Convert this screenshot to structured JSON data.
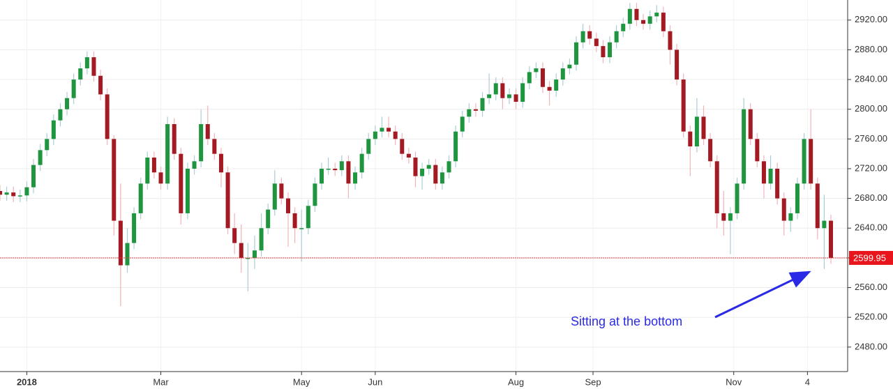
{
  "chart_data": {
    "type": "candlestick",
    "x": [
      0,
      2,
      4,
      6,
      8,
      10,
      12,
      14,
      16,
      18,
      20,
      22,
      24,
      26,
      28,
      30,
      32,
      34,
      36,
      38,
      40,
      42,
      44,
      46,
      48,
      50,
      52,
      54,
      56,
      58,
      60,
      62,
      64,
      66,
      68,
      70,
      72,
      74,
      76,
      78,
      80,
      82,
      84,
      86,
      88,
      90,
      92,
      94,
      96,
      98,
      100,
      102,
      104,
      106,
      108,
      110,
      112,
      114,
      116,
      118,
      120,
      122,
      124,
      126,
      128,
      130,
      132,
      134,
      136,
      138,
      140,
      142,
      144,
      146,
      148,
      150,
      152,
      154,
      156,
      158,
      160,
      162,
      164,
      166,
      168,
      170,
      172,
      174,
      176,
      178,
      180,
      182,
      184,
      186,
      188,
      190,
      192,
      194,
      196,
      198,
      200,
      202,
      204,
      206,
      208,
      210,
      212,
      214,
      216,
      218,
      220,
      222,
      224,
      226,
      228,
      230,
      232,
      234,
      236,
      238,
      240,
      242,
      244,
      246,
      248
    ],
    "open": [
      2690,
      2685,
      2688,
      2683,
      2684,
      2695,
      2725,
      2745,
      2760,
      2785,
      2800,
      2815,
      2840,
      2855,
      2870,
      2845,
      2820,
      2760,
      2650,
      2590,
      2620,
      2660,
      2700,
      2735,
      2715,
      2700,
      2780,
      2740,
      2660,
      2720,
      2730,
      2780,
      2760,
      2740,
      2715,
      2640,
      2620,
      2600,
      2600,
      2610,
      2640,
      2665,
      2700,
      2680,
      2660,
      2640,
      2640,
      2670,
      2700,
      2720,
      2720,
      2718,
      2730,
      2700,
      2715,
      2740,
      2760,
      2770,
      2775,
      2770,
      2760,
      2740,
      2735,
      2710,
      2720,
      2725,
      2700,
      2715,
      2730,
      2770,
      2790,
      2800,
      2798,
      2815,
      2820,
      2835,
      2815,
      2820,
      2810,
      2835,
      2850,
      2855,
      2830,
      2825,
      2840,
      2855,
      2860,
      2890,
      2905,
      2895,
      2885,
      2870,
      2890,
      2905,
      2915,
      2935,
      2920,
      2915,
      2925,
      2930,
      2905,
      2880,
      2840,
      2770,
      2750,
      2790,
      2760,
      2730,
      2660,
      2650,
      2660,
      2700,
      2800,
      2760,
      2730,
      2700,
      2720,
      2680,
      2650,
      2660,
      2700,
      2760,
      2700,
      2640,
      2650
    ],
    "high": [
      2698,
      2696,
      2696,
      2692,
      2703,
      2733,
      2753,
      2768,
      2793,
      2808,
      2823,
      2848,
      2863,
      2878,
      2878,
      2853,
      2828,
      2765,
      2700,
      2640,
      2668,
      2708,
      2743,
      2743,
      2723,
      2790,
      2788,
      2748,
      2728,
      2738,
      2800,
      2805,
      2768,
      2748,
      2723,
      2660,
      2645,
      2620,
      2630,
      2660,
      2673,
      2718,
      2708,
      2688,
      2668,
      2665,
      2678,
      2708,
      2728,
      2735,
      2728,
      2738,
      2738,
      2723,
      2748,
      2768,
      2778,
      2790,
      2790,
      2778,
      2768,
      2748,
      2743,
      2728,
      2733,
      2733,
      2723,
      2738,
      2778,
      2798,
      2808,
      2808,
      2823,
      2848,
      2843,
      2843,
      2828,
      2828,
      2843,
      2858,
      2863,
      2863,
      2838,
      2848,
      2863,
      2868,
      2898,
      2915,
      2913,
      2903,
      2893,
      2898,
      2913,
      2923,
      2943,
      2943,
      2928,
      2933,
      2940,
      2938,
      2913,
      2888,
      2848,
      2778,
      2815,
      2805,
      2768,
      2738,
      2690,
      2668,
      2708,
      2815,
      2808,
      2768,
      2738,
      2738,
      2728,
      2688,
      2668,
      2708,
      2768,
      2800,
      2708,
      2685,
      2658
    ],
    "low": [
      2677,
      2677,
      2675,
      2675,
      2676,
      2687,
      2717,
      2737,
      2752,
      2777,
      2792,
      2807,
      2832,
      2847,
      2837,
      2812,
      2752,
      2630,
      2535,
      2580,
      2612,
      2652,
      2692,
      2707,
      2692,
      2692,
      2732,
      2645,
      2652,
      2712,
      2722,
      2752,
      2732,
      2695,
      2632,
      2605,
      2580,
      2555,
      2585,
      2602,
      2632,
      2657,
      2672,
      2615,
      2620,
      2595,
      2632,
      2662,
      2692,
      2712,
      2710,
      2710,
      2680,
      2692,
      2707,
      2732,
      2752,
      2762,
      2762,
      2752,
      2732,
      2727,
      2695,
      2692,
      2712,
      2692,
      2692,
      2707,
      2722,
      2762,
      2782,
      2790,
      2790,
      2807,
      2812,
      2800,
      2807,
      2800,
      2802,
      2827,
      2842,
      2822,
      2805,
      2817,
      2832,
      2847,
      2852,
      2882,
      2887,
      2877,
      2862,
      2862,
      2882,
      2897,
      2907,
      2912,
      2907,
      2907,
      2917,
      2897,
      2860,
      2832,
      2762,
      2710,
      2742,
      2752,
      2722,
      2640,
      2630,
      2605,
      2652,
      2692,
      2752,
      2722,
      2680,
      2692,
      2672,
      2630,
      2635,
      2652,
      2692,
      2692,
      2625,
      2585,
      2592
    ],
    "close": [
      2685,
      2688,
      2683,
      2684,
      2695,
      2725,
      2745,
      2760,
      2785,
      2800,
      2815,
      2840,
      2855,
      2870,
      2845,
      2820,
      2760,
      2650,
      2590,
      2620,
      2660,
      2700,
      2735,
      2715,
      2700,
      2780,
      2740,
      2660,
      2720,
      2730,
      2780,
      2760,
      2740,
      2715,
      2640,
      2620,
      2600,
      2600,
      2610,
      2640,
      2665,
      2700,
      2680,
      2660,
      2640,
      2640,
      2670,
      2700,
      2720,
      2720,
      2718,
      2730,
      2700,
      2715,
      2740,
      2760,
      2770,
      2775,
      2770,
      2760,
      2740,
      2735,
      2710,
      2720,
      2725,
      2700,
      2715,
      2730,
      2770,
      2790,
      2800,
      2798,
      2815,
      2820,
      2835,
      2815,
      2820,
      2810,
      2835,
      2850,
      2855,
      2830,
      2825,
      2840,
      2855,
      2860,
      2890,
      2905,
      2895,
      2885,
      2870,
      2890,
      2905,
      2915,
      2935,
      2920,
      2915,
      2925,
      2930,
      2905,
      2880,
      2840,
      2770,
      2750,
      2790,
      2760,
      2730,
      2660,
      2650,
      2660,
      2700,
      2800,
      2760,
      2730,
      2700,
      2720,
      2680,
      2650,
      2660,
      2700,
      2760,
      2700,
      2640,
      2650,
      2600
    ],
    "up_color": "#1f9540",
    "down_color": "#a31a22",
    "xlim": [
      0,
      253
    ],
    "xticks": [
      {
        "value": 8,
        "label": "2018"
      },
      {
        "value": 48,
        "label": "Mar"
      },
      {
        "value": 90,
        "label": "May"
      },
      {
        "value": 112,
        "label": "Jun"
      },
      {
        "value": 154,
        "label": "Aug"
      },
      {
        "value": 177,
        "label": "Sep"
      },
      {
        "value": 219,
        "label": "Nov"
      },
      {
        "value": 241,
        "label": "4"
      }
    ],
    "ylim": [
      2447,
      2947
    ],
    "yticks": [
      {
        "value": 2480,
        "label": "2480.00"
      },
      {
        "value": 2520,
        "label": "2520.00"
      },
      {
        "value": 2560,
        "label": "2560.00"
      },
      {
        "value": 2600,
        "label": "2600.00"
      },
      {
        "value": 2640,
        "label": "2640.00"
      },
      {
        "value": 2680,
        "label": "2680.00"
      },
      {
        "value": 2720,
        "label": "2720.00"
      },
      {
        "value": 2760,
        "label": "2760.00"
      },
      {
        "value": 2800,
        "label": "2800.00"
      },
      {
        "value": 2840,
        "label": "2840.00"
      },
      {
        "value": 2880,
        "label": "2880.00"
      },
      {
        "value": 2920,
        "label": "2920.00"
      }
    ],
    "grid": true,
    "last_price": 2599.95,
    "annotation": "Sitting at the bottom"
  }
}
